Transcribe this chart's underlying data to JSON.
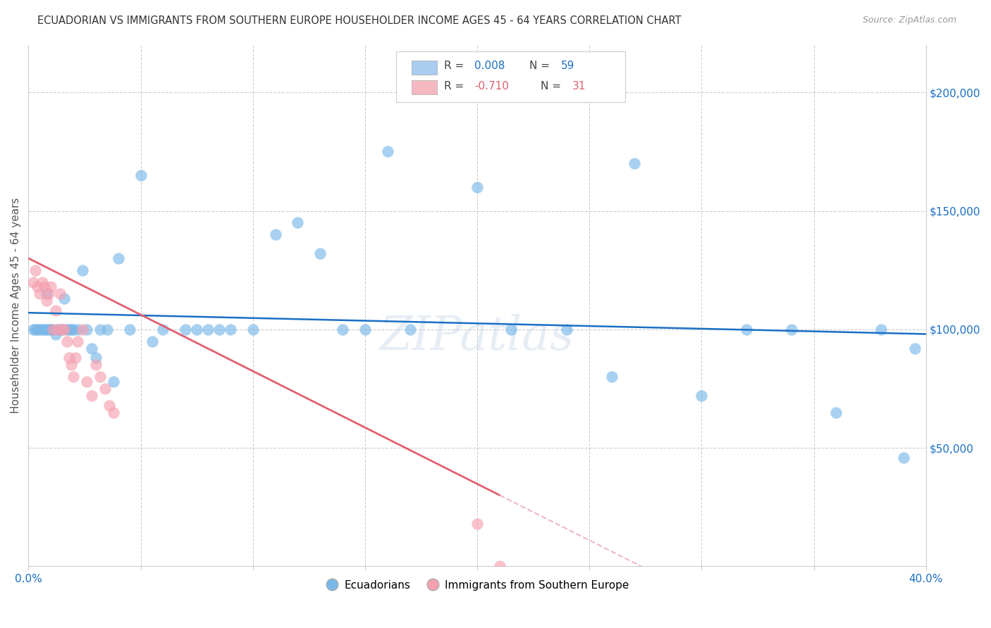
{
  "title": "ECUADORIAN VS IMMIGRANTS FROM SOUTHERN EUROPE HOUSEHOLDER INCOME AGES 45 - 64 YEARS CORRELATION CHART",
  "source": "Source: ZipAtlas.com",
  "ylabel": "Householder Income Ages 45 - 64 years",
  "xmin": 0.0,
  "xmax": 0.4,
  "ymin": 0,
  "ymax": 220000,
  "xtick_positions": [
    0.0,
    0.05,
    0.1,
    0.15,
    0.2,
    0.25,
    0.3,
    0.35,
    0.4
  ],
  "xtick_labels": [
    "0.0%",
    "",
    "",
    "",
    "",
    "",
    "",
    "",
    "40.0%"
  ],
  "ytick_vals": [
    50000,
    100000,
    150000,
    200000
  ],
  "blue_color": "#7ab8e8",
  "pink_color": "#f5a0b0",
  "trendline_blue_color": "#1a6fc4",
  "trendline_pink_solid_color": "#e06070",
  "trendline_pink_dash_color": "#f0b8c0",
  "watermark": "ZIPatlas",
  "legend_box_color": "#aaccee",
  "legend_box_pink_color": "#f5b8c0",
  "blue_x": [
    0.002,
    0.003,
    0.004,
    0.005,
    0.006,
    0.007,
    0.008,
    0.008,
    0.009,
    0.01,
    0.011,
    0.012,
    0.013,
    0.014,
    0.015,
    0.016,
    0.017,
    0.018,
    0.019,
    0.02,
    0.022,
    0.024,
    0.026,
    0.028,
    0.03,
    0.032,
    0.035,
    0.038,
    0.04,
    0.045,
    0.05,
    0.055,
    0.06,
    0.07,
    0.075,
    0.08,
    0.085,
    0.09,
    0.1,
    0.11,
    0.12,
    0.13,
    0.14,
    0.15,
    0.16,
    0.17,
    0.2,
    0.215,
    0.24,
    0.26,
    0.27,
    0.3,
    0.32,
    0.34,
    0.36,
    0.38,
    0.39,
    0.395
  ],
  "blue_y": [
    100000,
    100000,
    100000,
    100000,
    100000,
    100000,
    100000,
    115000,
    100000,
    100000,
    100000,
    98000,
    100000,
    100000,
    100000,
    113000,
    100000,
    100000,
    100000,
    100000,
    100000,
    125000,
    100000,
    92000,
    88000,
    100000,
    100000,
    78000,
    130000,
    100000,
    165000,
    95000,
    100000,
    100000,
    100000,
    100000,
    100000,
    100000,
    100000,
    140000,
    145000,
    132000,
    100000,
    100000,
    175000,
    100000,
    160000,
    100000,
    100000,
    80000,
    170000,
    72000,
    100000,
    100000,
    65000,
    100000,
    46000,
    92000
  ],
  "pink_x": [
    0.002,
    0.003,
    0.004,
    0.005,
    0.006,
    0.007,
    0.008,
    0.009,
    0.01,
    0.011,
    0.012,
    0.013,
    0.014,
    0.015,
    0.016,
    0.017,
    0.018,
    0.019,
    0.02,
    0.021,
    0.022,
    0.024,
    0.026,
    0.028,
    0.03,
    0.032,
    0.034,
    0.036,
    0.038,
    0.2,
    0.21
  ],
  "pink_y": [
    120000,
    125000,
    118000,
    115000,
    120000,
    118000,
    112000,
    115000,
    118000,
    100000,
    108000,
    100000,
    115000,
    100000,
    100000,
    95000,
    88000,
    85000,
    80000,
    88000,
    95000,
    100000,
    78000,
    72000,
    85000,
    80000,
    75000,
    68000,
    65000,
    18000,
    0
  ]
}
